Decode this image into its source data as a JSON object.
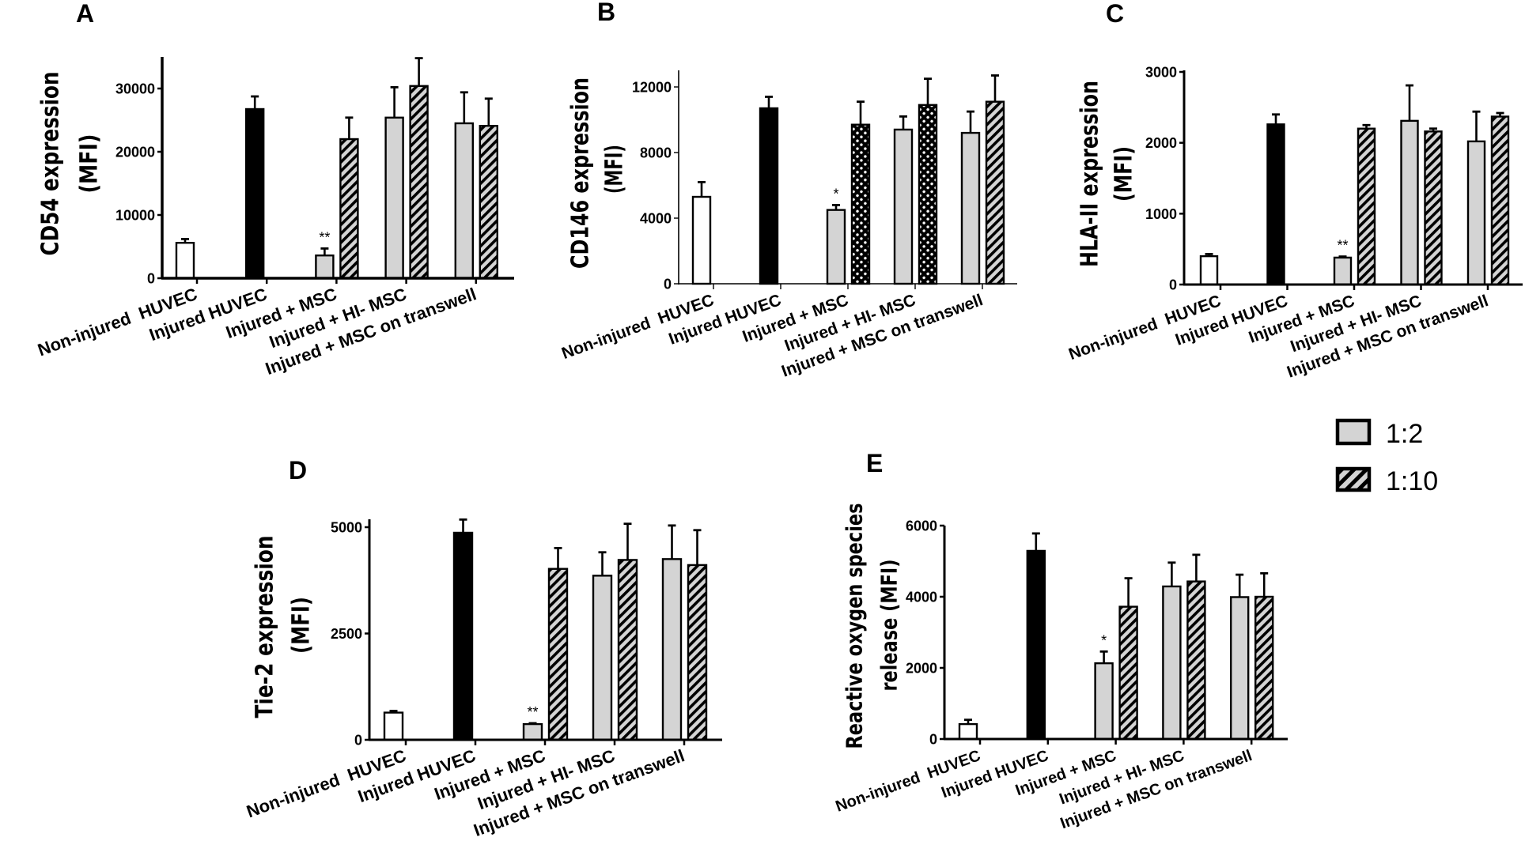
{
  "colors": {
    "white_bar": "#ffffff",
    "black_bar": "#000000",
    "ratio_1_2": "#d4d4d4",
    "hatch_bg": "#d4d4d4",
    "axis": "#000000"
  },
  "legend": {
    "items": [
      {
        "label": "1:2",
        "pattern": "solid-gray"
      },
      {
        "label": "1:10",
        "pattern": "hatch"
      }
    ]
  },
  "chart_data": [
    {
      "panel": "A",
      "type": "bar",
      "title": "A",
      "ylabel": [
        "CD54 expression",
        "(MFI)"
      ],
      "ylim": [
        0,
        35000
      ],
      "yticks": [
        0,
        10000,
        20000,
        30000
      ],
      "ytick_labels": [
        "0",
        "10000",
        "20000",
        "30000"
      ],
      "categories": [
        "Non-injured  HUVEC",
        "Injured HUVEC",
        "Injured + MSC",
        "Injured + HI- MSC",
        "Injured + MSC on transwell"
      ],
      "bars": [
        {
          "category": 0,
          "series": "control",
          "fill": "white",
          "value": 5600,
          "error": 600
        },
        {
          "category": 1,
          "series": "control",
          "fill": "black",
          "value": 26750,
          "error": 2000
        },
        {
          "category": 2,
          "series": "1:2",
          "fill": "gray",
          "value": 3600,
          "error": 1100,
          "significance": "**"
        },
        {
          "category": 2,
          "series": "1:10",
          "fill": "hatch",
          "value": 22000,
          "error": 3400
        },
        {
          "category": 3,
          "series": "1:2",
          "fill": "gray",
          "value": 25400,
          "error": 4800
        },
        {
          "category": 3,
          "series": "1:10",
          "fill": "hatch",
          "value": 30400,
          "error": 4400
        },
        {
          "category": 4,
          "series": "1:2",
          "fill": "gray",
          "value": 24500,
          "error": 4900
        },
        {
          "category": 4,
          "series": "1:10",
          "fill": "hatch",
          "value": 24100,
          "error": 4300
        }
      ]
    },
    {
      "panel": "B",
      "type": "bar",
      "title": "B",
      "ylabel": [
        "CD146 expression",
        "(MFI)"
      ],
      "ylim": [
        0,
        13000
      ],
      "yticks": [
        0,
        4000,
        8000,
        12000
      ],
      "ytick_labels": [
        "0",
        "4000",
        "8000",
        "12000"
      ],
      "categories": [
        "Non-injured  HUVEC",
        "Injured HUVEC",
        "Injured + MSC",
        "Injured + HI- MSC",
        "Injured + MSC on transwell"
      ],
      "bars": [
        {
          "category": 0,
          "series": "control",
          "fill": "white",
          "value": 5300,
          "error": 900
        },
        {
          "category": 1,
          "series": "control",
          "fill": "black",
          "value": 10700,
          "error": 700
        },
        {
          "category": 2,
          "series": "1:2",
          "fill": "gray",
          "value": 4500,
          "error": 300,
          "significance": "*"
        },
        {
          "category": 2,
          "series": "1:10",
          "fill": "crosshatch",
          "value": 9700,
          "error": 1400
        },
        {
          "category": 3,
          "series": "1:2",
          "fill": "gray",
          "value": 9400,
          "error": 800
        },
        {
          "category": 3,
          "series": "1:10",
          "fill": "crosshatch",
          "value": 10900,
          "error": 1600
        },
        {
          "category": 4,
          "series": "1:2",
          "fill": "gray",
          "value": 9200,
          "error": 1300
        },
        {
          "category": 4,
          "series": "1:10",
          "fill": "hatch",
          "value": 11100,
          "error": 1600
        }
      ]
    },
    {
      "panel": "C",
      "type": "bar",
      "title": "C",
      "ylabel": [
        "HLA-II expression",
        "(MFI)"
      ],
      "ylim": [
        0,
        3000
      ],
      "yticks": [
        0,
        1000,
        2000,
        3000
      ],
      "ytick_labels": [
        "0",
        "1000",
        "2000",
        "3000"
      ],
      "categories": [
        "Non-injured  HUVEC",
        "Injured HUVEC",
        "Injured + MSC",
        "Injured + HI- MSC",
        "Injured + MSC on transwell"
      ],
      "bars": [
        {
          "category": 0,
          "series": "control",
          "fill": "white",
          "value": 400,
          "error": 30
        },
        {
          "category": 1,
          "series": "control",
          "fill": "black",
          "value": 2260,
          "error": 140
        },
        {
          "category": 2,
          "series": "1:2",
          "fill": "gray",
          "value": 380,
          "error": 15,
          "significance": "**"
        },
        {
          "category": 2,
          "series": "1:10",
          "fill": "hatch",
          "value": 2200,
          "error": 50
        },
        {
          "category": 3,
          "series": "1:2",
          "fill": "gray",
          "value": 2310,
          "error": 500
        },
        {
          "category": 3,
          "series": "1:10",
          "fill": "hatch",
          "value": 2160,
          "error": 40
        },
        {
          "category": 4,
          "series": "1:2",
          "fill": "gray",
          "value": 2020,
          "error": 420
        },
        {
          "category": 4,
          "series": "1:10",
          "fill": "hatch",
          "value": 2370,
          "error": 50
        }
      ]
    },
    {
      "panel": "D",
      "type": "bar",
      "title": "D",
      "ylabel": [
        "Tie-2 expression",
        "(MFI)"
      ],
      "ylim": [
        0,
        5200
      ],
      "yticks": [
        0,
        2500,
        5000
      ],
      "ytick_labels": [
        "0",
        "2500",
        "5000"
      ],
      "categories": [
        "Non-injured  HUVEC",
        "Injured HUVEC",
        "Injured + MSC",
        "Injured + HI- MSC",
        "Injured + MSC on transwell"
      ],
      "bars": [
        {
          "category": 0,
          "series": "control",
          "fill": "white",
          "value": 640,
          "error": 40
        },
        {
          "category": 1,
          "series": "control",
          "fill": "black",
          "value": 4870,
          "error": 310
        },
        {
          "category": 2,
          "series": "1:2",
          "fill": "gray",
          "value": 370,
          "error": 20,
          "significance": "**"
        },
        {
          "category": 2,
          "series": "1:10",
          "fill": "hatch",
          "value": 4020,
          "error": 490
        },
        {
          "category": 3,
          "series": "1:2",
          "fill": "gray",
          "value": 3860,
          "error": 550
        },
        {
          "category": 3,
          "series": "1:10",
          "fill": "hatch",
          "value": 4230,
          "error": 850
        },
        {
          "category": 4,
          "series": "1:2",
          "fill": "gray",
          "value": 4250,
          "error": 790
        },
        {
          "category": 4,
          "series": "1:10",
          "fill": "hatch",
          "value": 4110,
          "error": 820
        }
      ]
    },
    {
      "panel": "E",
      "type": "bar",
      "title": "E",
      "ylabel": [
        "Reactive oxygen species",
        "release (MFI)"
      ],
      "ylim": [
        0,
        6000
      ],
      "yticks": [
        0,
        2000,
        4000,
        6000
      ],
      "ytick_labels": [
        "0",
        "2000",
        "4000",
        "6000"
      ],
      "categories": [
        "Non-injured  HUVEC",
        "Injured HUVEC",
        "Injured + MSC",
        "Injured + HI- MSC",
        "Injured + MSC on transwell"
      ],
      "bars": [
        {
          "category": 0,
          "series": "control",
          "fill": "white",
          "value": 420,
          "error": 120
        },
        {
          "category": 1,
          "series": "control",
          "fill": "black",
          "value": 5290,
          "error": 490
        },
        {
          "category": 2,
          "series": "1:2",
          "fill": "gray",
          "value": 2130,
          "error": 330,
          "significance": "*"
        },
        {
          "category": 2,
          "series": "1:10",
          "fill": "hatch",
          "value": 3720,
          "error": 800
        },
        {
          "category": 3,
          "series": "1:2",
          "fill": "gray",
          "value": 4290,
          "error": 670
        },
        {
          "category": 3,
          "series": "1:10",
          "fill": "hatch",
          "value": 4430,
          "error": 750
        },
        {
          "category": 4,
          "series": "1:2",
          "fill": "gray",
          "value": 3990,
          "error": 630
        },
        {
          "category": 4,
          "series": "1:10",
          "fill": "hatch",
          "value": 4000,
          "error": 660
        }
      ]
    }
  ]
}
